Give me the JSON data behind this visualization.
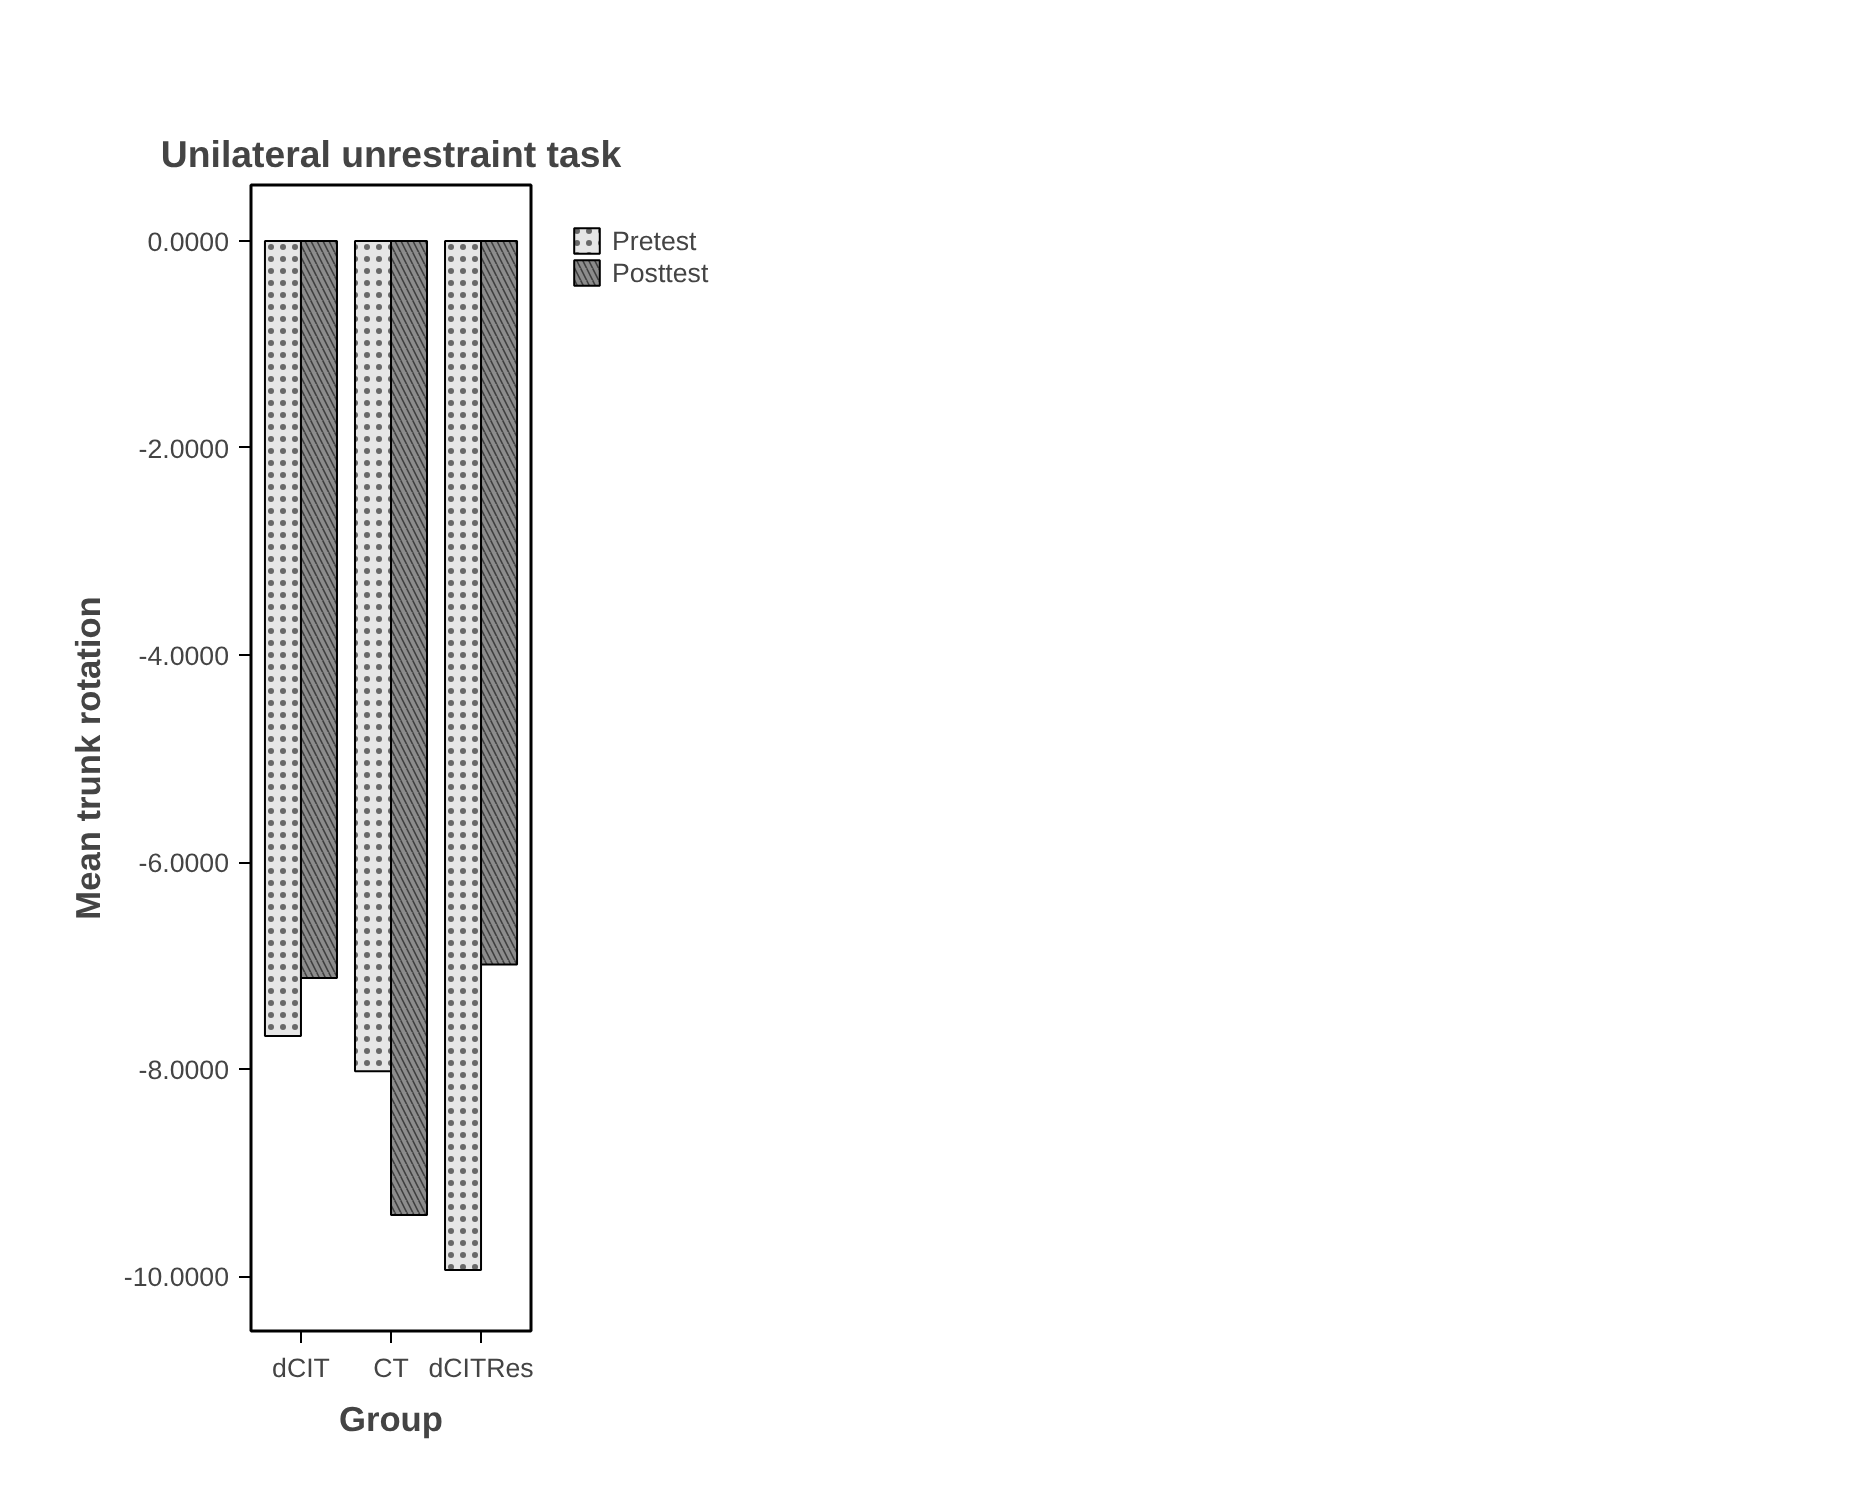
{
  "chart_data": {
    "type": "bar",
    "title": "Unilateral unrestraint task",
    "xlabel": "Group",
    "ylabel": "Mean trunk rotation",
    "categories": [
      "dCIT",
      "CT",
      "dCITRes"
    ],
    "series": [
      {
        "name": "Pretest",
        "color": "#e6e6e6",
        "values": [
          -7.68,
          -8.02,
          -9.94
        ]
      },
      {
        "name": "Posttest",
        "color": "#8c8c8c",
        "values": [
          -7.12,
          -9.41,
          -6.99
        ]
      }
    ],
    "ylim": [
      -10.53,
      0.54
    ],
    "yticks": [
      {
        "value": 0,
        "label": "0.0000"
      },
      {
        "value": -2,
        "label": "-2.0000"
      },
      {
        "value": -4,
        "label": "-4.0000"
      },
      {
        "value": -6,
        "label": "-6.0000"
      },
      {
        "value": -8,
        "label": "-8.0000"
      },
      {
        "value": -10,
        "label": "-10.0000"
      }
    ],
    "grid": false,
    "legend": "top right"
  }
}
